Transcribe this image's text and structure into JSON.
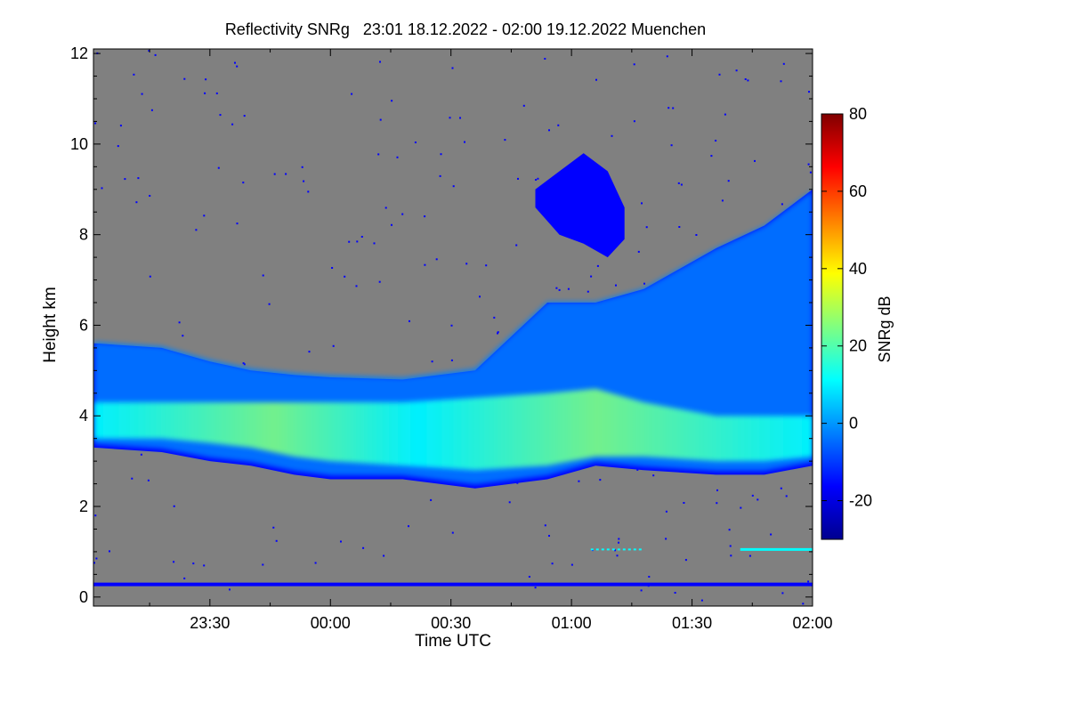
{
  "chart_data": {
    "type": "heatmap",
    "title": "Reflectivity SNRg   23:01 18.12.2022 - 02:00 19.12.2022 Muenchen",
    "xlabel": "Time UTC",
    "ylabel": "Height km",
    "colorbar_label": "SNRg dB",
    "xlim_hours": [
      23.017,
      26.0
    ],
    "x_ticks": [
      {
        "h": 23.5,
        "label": "23:30"
      },
      {
        "h": 24.0,
        "label": "00:00"
      },
      {
        "h": 24.5,
        "label": "00:30"
      },
      {
        "h": 25.0,
        "label": "01:00"
      },
      {
        "h": 25.5,
        "label": "01:30"
      },
      {
        "h": 26.0,
        "label": "02:00"
      }
    ],
    "ylim": [
      -0.2,
      12.1
    ],
    "y_ticks": [
      0,
      2,
      4,
      6,
      8,
      10,
      12
    ],
    "colorbar_range": [
      -30,
      80
    ],
    "colorbar_ticks": [
      -20,
      0,
      20,
      40,
      60,
      80
    ],
    "background_color": "#808080",
    "colormap": [
      "#00008f",
      "#0000ff",
      "#0080ff",
      "#00ffff",
      "#80ff80",
      "#ffff00",
      "#ff8000",
      "#ff0000",
      "#800000"
    ],
    "ground_clutter_line_km": 0.28,
    "lower_echo_km": 1.05,
    "cloud_layer": {
      "hours": [
        23.02,
        23.3,
        23.5,
        23.67,
        23.85,
        24.0,
        24.3,
        24.6,
        24.9,
        25.1,
        25.3,
        25.6,
        25.8,
        26.0
      ],
      "top_km": [
        5.6,
        5.5,
        5.2,
        5.0,
        4.9,
        4.85,
        4.8,
        5.0,
        6.5,
        6.5,
        6.8,
        7.7,
        8.2,
        9.0
      ],
      "bottom_km": [
        3.3,
        3.2,
        3.0,
        2.9,
        2.7,
        2.6,
        2.6,
        2.4,
        2.6,
        2.9,
        2.8,
        2.7,
        2.7,
        2.9
      ],
      "core_top_km": [
        4.3,
        4.3,
        4.3,
        4.3,
        4.3,
        4.3,
        4.3,
        4.4,
        4.5,
        4.6,
        4.3,
        4.0,
        4.0,
        4.0
      ],
      "core_bottom_km": [
        3.5,
        3.5,
        3.4,
        3.3,
        3.1,
        3.0,
        2.9,
        2.8,
        2.9,
        3.1,
        3.1,
        3.0,
        3.0,
        3.1
      ]
    },
    "upper_patch": {
      "hours": [
        24.85,
        24.95,
        25.05,
        25.15,
        25.22
      ],
      "top_km": [
        9.0,
        9.4,
        9.8,
        9.4,
        8.6
      ],
      "bottom_km": [
        8.6,
        8.0,
        7.8,
        7.5,
        7.9
      ]
    }
  }
}
